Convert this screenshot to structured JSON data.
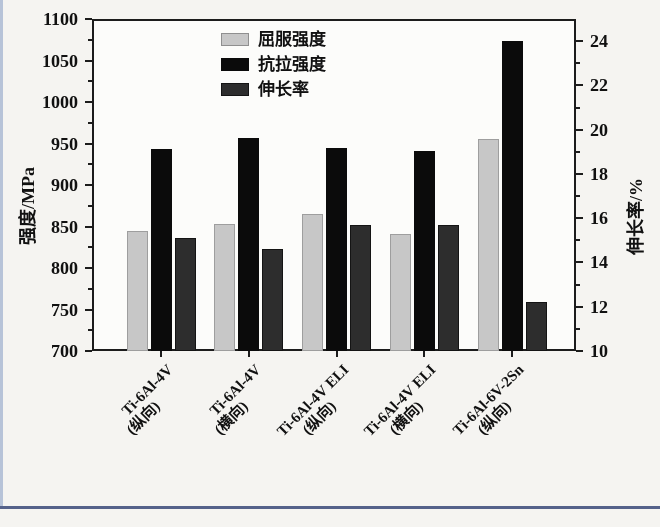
{
  "colors": {
    "page_background": "#f5f4f1",
    "plot_background": "#fcfcfa",
    "axis": "#1c1c1c",
    "yield_bar": "#c7c7c7",
    "yield_bar_border": "#9e9e9e",
    "tensile_bar": "#0b0b0b",
    "elongation_bar": "#2d2d2d",
    "elongation_bar_border": "#141414",
    "left_edge_strip": "#b7c3d8",
    "bottom_edge_strip": "#55628a"
  },
  "chart_data": {
    "type": "bar",
    "title": "",
    "categories": [
      "Ti-6Al-4V\n(纵向)",
      "Ti-6Al-4V\n(横向)",
      "Ti-6Al-4V ELI\n(纵向)",
      "Ti-6Al-4V ELI\n(横向)",
      "Ti-6Al-6V-2Sn\n(纵向)"
    ],
    "series": [
      {
        "name": "屈服强度",
        "axis": "left",
        "color": "#c7c7c7",
        "border": "#9e9e9e",
        "values": [
          845,
          853,
          865,
          841,
          956
        ]
      },
      {
        "name": "抗拉强度",
        "axis": "left",
        "color": "#0b0b0b",
        "border": "#0b0b0b",
        "values": [
          943,
          957,
          945,
          941,
          1073
        ]
      },
      {
        "name": "伸长率",
        "axis": "right",
        "color": "#2d2d2d",
        "border": "#141414",
        "values": [
          15.1,
          14.6,
          15.7,
          15.7,
          12.2
        ]
      }
    ],
    "left_axis": {
      "label": "强度/MPa",
      "min": 700,
      "max": 1100,
      "major_ticks": [
        700,
        750,
        800,
        850,
        900,
        950,
        1000,
        1050,
        1100
      ],
      "minor_step": 25
    },
    "right_axis": {
      "label": "伸长率/%",
      "min": 10,
      "max": 25,
      "major_ticks": [
        10,
        12,
        14,
        16,
        18,
        20,
        22,
        24
      ],
      "minor_step": 1
    },
    "legend": {
      "position": "upper left inside plot",
      "entries": [
        "屈服强度",
        "抗拉强度",
        "伸长率"
      ]
    },
    "grid": false
  }
}
